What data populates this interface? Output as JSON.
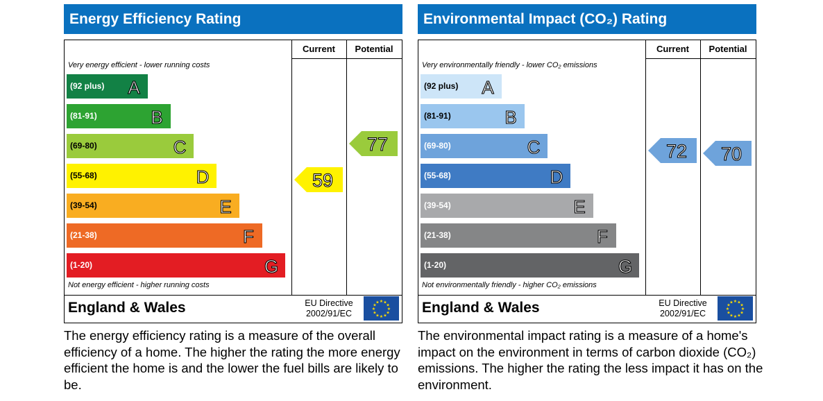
{
  "chart_data": [
    {
      "type": "bar",
      "title": "Energy Efficiency Rating",
      "columns": [
        "Current",
        "Potential"
      ],
      "top_note": "Very energy efficient - lower running costs",
      "bottom_note": "Not energy efficient - higher running costs",
      "bands": [
        {
          "range": "(92 plus)",
          "letter": "A",
          "color": "#128145"
        },
        {
          "range": "(81-91)",
          "letter": "B",
          "color": "#2da332"
        },
        {
          "range": "(69-80)",
          "letter": "C",
          "color": "#9acb3c"
        },
        {
          "range": "(55-68)",
          "letter": "D",
          "color": "#fff200"
        },
        {
          "range": "(39-54)",
          "letter": "E",
          "color": "#f9ad21"
        },
        {
          "range": "(21-38)",
          "letter": "F",
          "color": "#ee6a25"
        },
        {
          "range": "(1-20)",
          "letter": "G",
          "color": "#e31d23"
        }
      ],
      "current": {
        "value": 59,
        "band": "D",
        "color": "#fff200"
      },
      "potential": {
        "value": 77,
        "band": "C",
        "color": "#9acb3c"
      },
      "region": "England & Wales",
      "directive": [
        "EU Directive",
        "2002/91/EC"
      ],
      "description": "The energy efficiency rating is a measure of the overall efficiency of a home. The higher the rating the more energy efficient the home is and the lower the fuel bills are likely to be."
    },
    {
      "type": "bar",
      "title": "Environmental Impact (CO₂) Rating",
      "columns": [
        "Current",
        "Potential"
      ],
      "top_note": "Very environmentally friendly - lower CO₂ emissions",
      "bottom_note": "Not environmentally friendly - higher CO₂ emissions",
      "bands": [
        {
          "range": "(92 plus)",
          "letter": "A",
          "color": "#cde5f8"
        },
        {
          "range": "(81-91)",
          "letter": "B",
          "color": "#9ac6ee"
        },
        {
          "range": "(69-80)",
          "letter": "C",
          "color": "#6ea3db"
        },
        {
          "range": "(55-68)",
          "letter": "D",
          "color": "#3f7bc4"
        },
        {
          "range": "(39-54)",
          "letter": "E",
          "color": "#a8a9ab"
        },
        {
          "range": "(21-38)",
          "letter": "F",
          "color": "#858687"
        },
        {
          "range": "(1-20)",
          "letter": "G",
          "color": "#636466"
        }
      ],
      "current": {
        "value": 72,
        "band": "C",
        "color": "#6ea3db"
      },
      "potential": {
        "value": 70,
        "band": "C",
        "color": "#6ea3db"
      },
      "region": "England & Wales",
      "directive": [
        "EU Directive",
        "2002/91/EC"
      ],
      "description": "The environmental impact rating is a measure of a home's impact on the environment in terms of carbon dioxide (CO₂) emissions. The higher the rating the less impact it has on the environment."
    }
  ]
}
